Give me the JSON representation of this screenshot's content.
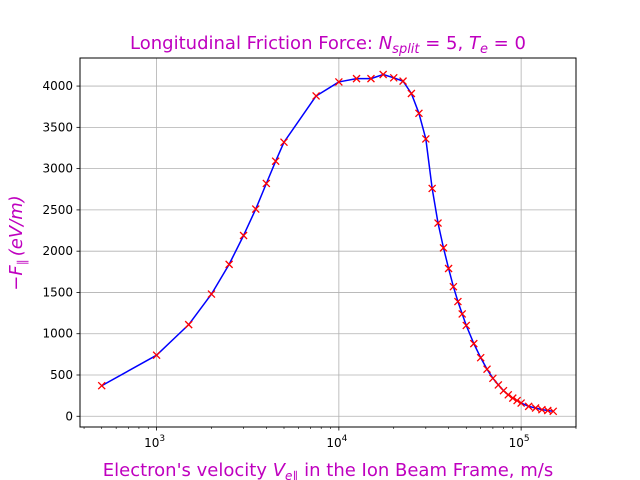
{
  "chart_data": {
    "type": "line",
    "title": {
      "prefix": "Longitudinal Friction Force: ",
      "n_symbol": "N",
      "n_subscript": "split",
      "n_value": " = 5, ",
      "t_symbol": "T",
      "t_subscript": "e",
      "t_value": " = 0"
    },
    "xlabel": {
      "prefix": "Electron's velocity ",
      "v_symbol": "V",
      "v_subscript": "e∥",
      "suffix": " in the Ion Beam Frame, m/s"
    },
    "ylabel": {
      "minus": "−",
      "f_symbol": "F",
      "f_subscript": "∥",
      "unit": "(eV/m)"
    },
    "x_scale": "log",
    "xlim": [
      380,
      200000
    ],
    "ylim": [
      -130,
      4340
    ],
    "grid": true,
    "x_ticks": [
      {
        "value": 1000,
        "base": "10",
        "exp": "3"
      },
      {
        "value": 10000,
        "base": "10",
        "exp": "4"
      },
      {
        "value": 100000,
        "base": "10",
        "exp": "5"
      }
    ],
    "y_ticks": [
      0,
      500,
      1000,
      1500,
      2000,
      2500,
      3000,
      3500,
      4000
    ],
    "series": [
      {
        "line_color": "#0000ff",
        "marker_color": "#ff0000",
        "marker": "x",
        "x": [
          500,
          1000,
          1500,
          2000,
          2500,
          3000,
          3500,
          4000,
          4500,
          5000,
          7500,
          10000,
          12500,
          15000,
          17500,
          20000,
          22500,
          25000,
          27500,
          30000,
          32500,
          35000,
          37500,
          40000,
          42500,
          45000,
          47500,
          50000,
          55000,
          60000,
          65000,
          70000,
          75000,
          80000,
          85000,
          90000,
          95000,
          100000,
          110000,
          120000,
          130000,
          140000,
          150000
        ],
        "y": [
          370,
          740,
          1110,
          1480,
          1840,
          2190,
          2510,
          2820,
          3090,
          3320,
          3880,
          4050,
          4090,
          4090,
          4140,
          4100,
          4060,
          3910,
          3670,
          3360,
          2760,
          2340,
          2040,
          1790,
          1570,
          1390,
          1240,
          1100,
          880,
          710,
          570,
          460,
          380,
          310,
          260,
          220,
          190,
          160,
          120,
          100,
          80,
          70,
          60
        ]
      }
    ]
  }
}
